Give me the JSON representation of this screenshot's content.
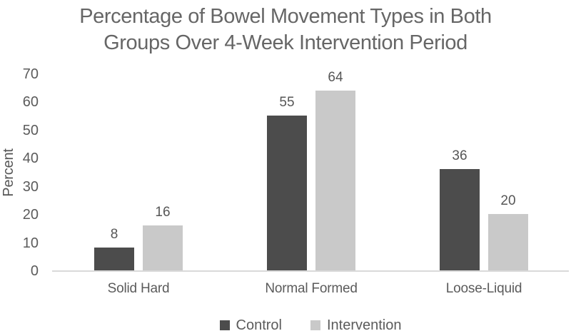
{
  "chart_data": {
    "type": "bar",
    "title": "Percentage of Bowel Movement Types in Both Groups Over 4-Week Intervention Period",
    "title_lines": [
      "Percentage of Bowel Movement Types in Both",
      "Groups Over 4-Week Intervention Period"
    ],
    "xlabel": "",
    "ylabel": "Percent",
    "ylim": [
      0,
      70
    ],
    "yticks": [
      0,
      10,
      20,
      30,
      40,
      50,
      60,
      70
    ],
    "categories": [
      "Solid Hard",
      "Normal Formed",
      "Loose-Liquid"
    ],
    "series": [
      {
        "name": "Control",
        "values": [
          8,
          55,
          36
        ],
        "color": "#4c4c4c"
      },
      {
        "name": "Intervention",
        "values": [
          16,
          64,
          20
        ],
        "color": "#c9c9c9"
      }
    ],
    "data_labels": true,
    "grid": false,
    "legend_position": "bottom",
    "colors": {
      "control_series": "#4c4c4c",
      "intervention_series": "#c9c9c9",
      "axis_line": "#d9d9d9",
      "text": "#5b5b5b",
      "background": "#ffffff"
    }
  }
}
